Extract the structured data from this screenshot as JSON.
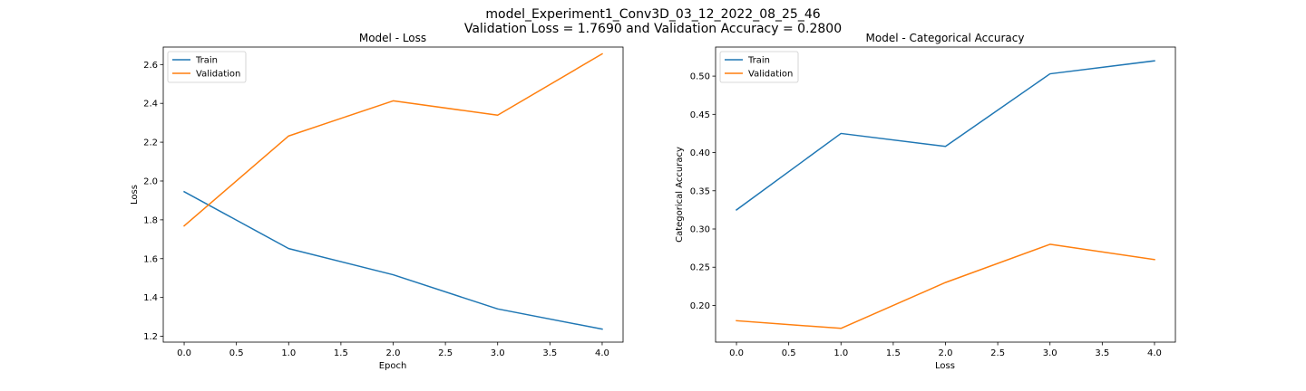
{
  "figure": {
    "title_line1": "model_Experiment1_Conv3D_03_12_2022_08_25_46",
    "title_line2": "Validation Loss = 1.7690 and Validation Accuracy = 0.2800"
  },
  "colors": {
    "train": "#1f77b4",
    "validation": "#ff7f0e",
    "axes": "#000000",
    "legend_edge": "#cccccc"
  },
  "chart_data": [
    {
      "type": "line",
      "title": "Model - Loss",
      "xlabel": "Epoch",
      "ylabel": "Loss",
      "x": [
        0,
        1,
        2,
        3,
        4
      ],
      "xlim": [
        -0.2,
        4.2
      ],
      "ylim": [
        1.17,
        2.69
      ],
      "xticks": [
        0.0,
        0.5,
        1.0,
        1.5,
        2.0,
        2.5,
        3.0,
        3.5,
        4.0
      ],
      "xtick_labels": [
        "0.0",
        "0.5",
        "1.0",
        "1.5",
        "2.0",
        "2.5",
        "3.0",
        "3.5",
        "4.0"
      ],
      "yticks": [
        1.2,
        1.4,
        1.6,
        1.8,
        2.0,
        2.2,
        2.4,
        2.6
      ],
      "ytick_labels": [
        "1.2",
        "1.4",
        "1.6",
        "1.8",
        "2.0",
        "2.2",
        "2.4",
        "2.6"
      ],
      "grid": false,
      "legend": "top-left",
      "series": [
        {
          "name": "Train",
          "color": "#1f77b4",
          "values": [
            1.945,
            1.652,
            1.517,
            1.341,
            1.237
          ]
        },
        {
          "name": "Validation",
          "color": "#ff7f0e",
          "values": [
            1.769,
            2.232,
            2.413,
            2.339,
            2.655
          ]
        }
      ]
    },
    {
      "type": "line",
      "title": "Model - Categorical Accuracy",
      "xlabel": "Loss",
      "ylabel": "Categorical Accuracy",
      "x": [
        0,
        1,
        2,
        3,
        4
      ],
      "xlim": [
        -0.2,
        4.2
      ],
      "ylim": [
        0.152,
        0.538
      ],
      "xticks": [
        0.0,
        0.5,
        1.0,
        1.5,
        2.0,
        2.5,
        3.0,
        3.5,
        4.0
      ],
      "xtick_labels": [
        "0.0",
        "0.5",
        "1.0",
        "1.5",
        "2.0",
        "2.5",
        "3.0",
        "3.5",
        "4.0"
      ],
      "yticks": [
        0.2,
        0.25,
        0.3,
        0.35,
        0.4,
        0.45,
        0.5
      ],
      "ytick_labels": [
        "0.20",
        "0.25",
        "0.30",
        "0.35",
        "0.40",
        "0.45",
        "0.50"
      ],
      "grid": false,
      "legend": "top-left",
      "series": [
        {
          "name": "Train",
          "color": "#1f77b4",
          "values": [
            0.325,
            0.425,
            0.408,
            0.503,
            0.52
          ]
        },
        {
          "name": "Validation",
          "color": "#ff7f0e",
          "values": [
            0.18,
            0.17,
            0.23,
            0.28,
            0.26
          ]
        }
      ]
    }
  ]
}
